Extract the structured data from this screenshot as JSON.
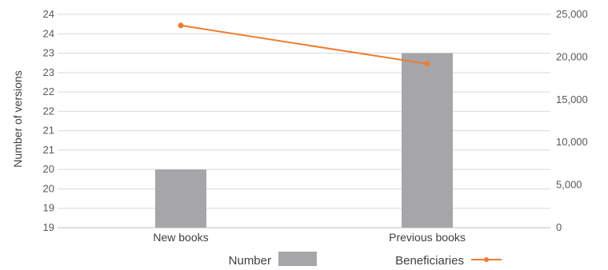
{
  "chart_data": {
    "type": "bar",
    "categories": [
      "New books",
      "Previous books"
    ],
    "series": [
      {
        "name": "Number",
        "type": "bar",
        "axis": "left",
        "values": [
          20.0,
          23.0
        ],
        "color": "#a6a6a8"
      },
      {
        "name": "Beneficiaries",
        "type": "line",
        "axis": "right",
        "values": [
          23700,
          19200
        ],
        "color": "#ed7d31"
      }
    ],
    "ylabel": "Number of versions",
    "left_axis": {
      "ylim": [
        18.5,
        24.0
      ],
      "ticks": [
        18.5,
        19.0,
        19.5,
        20.0,
        20.5,
        21.0,
        21.5,
        22.0,
        22.5,
        23.0,
        23.5,
        24.0
      ],
      "tick_labels": [
        "19",
        "19",
        "20",
        "20",
        "21",
        "21",
        "22",
        "22",
        "23",
        "23",
        "24",
        "24"
      ]
    },
    "right_axis": {
      "ylim": [
        0,
        25000
      ],
      "ticks": [
        0,
        5000,
        10000,
        15000,
        20000,
        25000
      ],
      "tick_labels": [
        "0",
        "5,000",
        "10,000",
        "15,000",
        "20,000",
        "25,000"
      ]
    },
    "grid": true,
    "legend": {
      "position": "bottom",
      "labels": [
        "Number",
        "Beneficiaries"
      ]
    }
  }
}
